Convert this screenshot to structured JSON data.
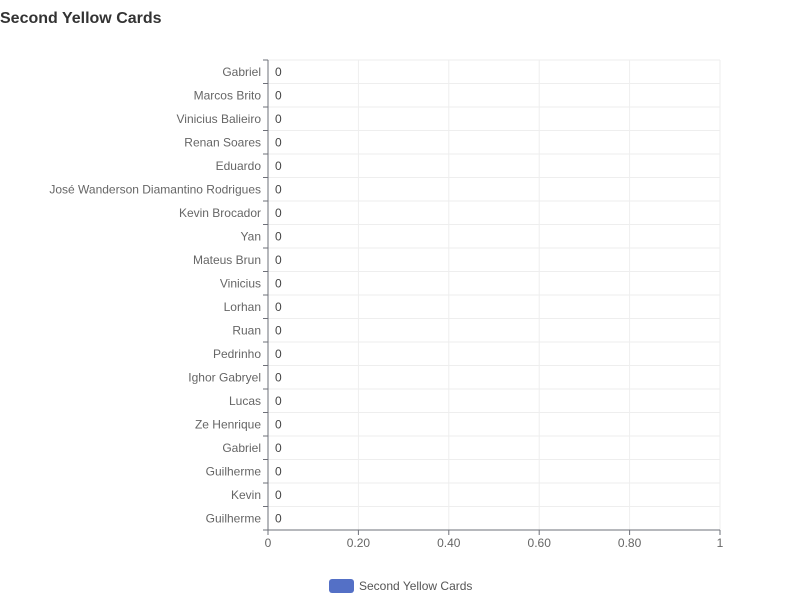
{
  "chart_data": {
    "type": "bar",
    "orientation": "horizontal",
    "title": "Second Yellow Cards",
    "categories": [
      "Gabriel",
      "Marcos Brito",
      "Vinicius Balieiro",
      "Renan Soares",
      "Eduardo",
      "José Wanderson Diamantino Rodrigues",
      "Kevin Brocador",
      "Yan",
      "Mateus Brun",
      "Vinicius",
      "Lorhan",
      "Ruan",
      "Pedrinho",
      "Ighor Gabryel",
      "Lucas",
      "Ze Henrique",
      "Gabriel",
      "Guilherme",
      "Kevin",
      "Guilherme"
    ],
    "series": [
      {
        "name": "Second Yellow Cards",
        "values": [
          0,
          0,
          0,
          0,
          0,
          0,
          0,
          0,
          0,
          0,
          0,
          0,
          0,
          0,
          0,
          0,
          0,
          0,
          0,
          0
        ],
        "color": "#5470c6"
      }
    ],
    "xlim": [
      0,
      1
    ],
    "x_ticks": [
      0,
      0.2,
      0.4,
      0.6,
      0.8,
      1
    ],
    "x_tick_labels": [
      "0",
      "0.20",
      "0.40",
      "0.60",
      "0.80",
      "1"
    ],
    "grid": true,
    "legend_position": "bottom-center",
    "data_labels": true
  }
}
